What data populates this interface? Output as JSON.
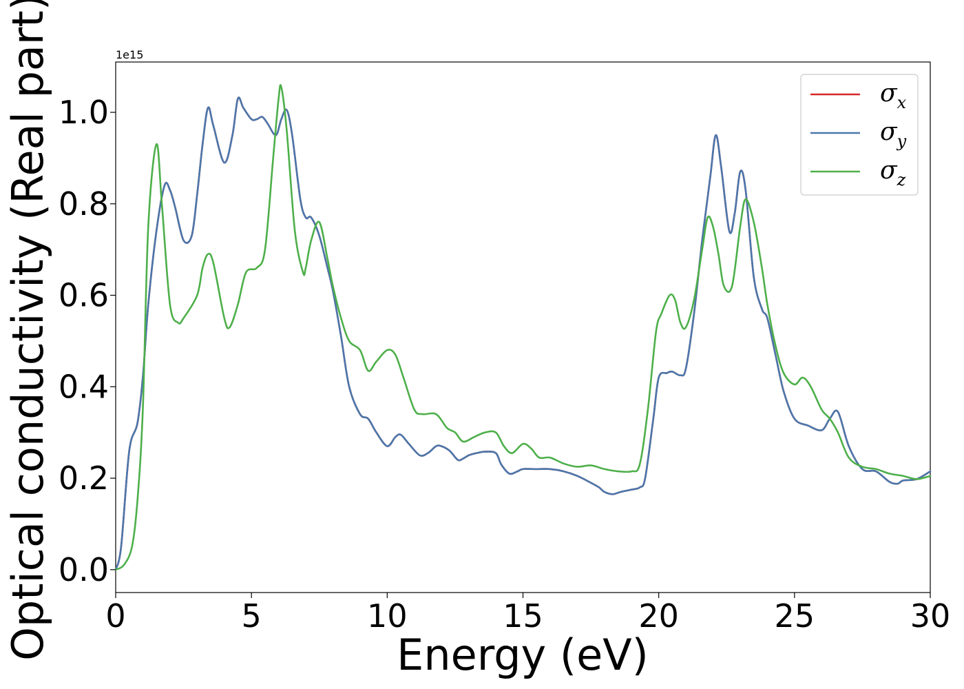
{
  "chart_data": {
    "type": "line",
    "xlabel": "Energy (eV)",
    "ylabel": "Optical conductivity (Real part)",
    "y_offset_label": "1e15",
    "xlim": [
      0,
      30
    ],
    "ylim": [
      -0.05,
      1.11
    ],
    "x_ticks": [
      0,
      5,
      10,
      15,
      20,
      25,
      30
    ],
    "x_tick_labels": [
      "0",
      "5",
      "10",
      "15",
      "20",
      "25",
      "30"
    ],
    "y_ticks": [
      0.0,
      0.2,
      0.4,
      0.6,
      0.8,
      1.0
    ],
    "y_tick_labels": [
      "0.0",
      "0.2",
      "0.4",
      "0.6",
      "0.8",
      "1.0"
    ],
    "grid": false,
    "legend_position": "top-right",
    "series": [
      {
        "name": "σx",
        "symbol": "σ",
        "sub": "x",
        "color": "#d62728",
        "x": [
          0,
          0.2,
          0.5,
          0.8,
          1.0,
          1.2,
          1.5,
          1.8,
          2.0,
          2.2,
          2.5,
          2.8,
          3.0,
          3.2,
          3.4,
          3.6,
          4.0,
          4.3,
          4.5,
          4.7,
          5.0,
          5.2,
          5.4,
          5.6,
          5.9,
          6.1,
          6.3,
          6.5,
          6.8,
          7.0,
          7.2,
          7.5,
          7.8,
          8.0,
          8.3,
          8.6,
          9.0,
          9.3,
          9.6,
          10.0,
          10.3,
          10.5,
          10.8,
          11.2,
          11.5,
          11.8,
          12.0,
          12.3,
          12.6,
          12.8,
          13.0,
          13.3,
          13.6,
          14.0,
          14.2,
          14.5,
          14.8,
          15.0,
          15.5,
          16.0,
          16.5,
          17.0,
          17.5,
          17.8,
          18.0,
          18.3,
          18.6,
          19.0,
          19.3,
          19.5,
          19.8,
          20.0,
          20.3,
          20.5,
          20.8,
          21.0,
          21.3,
          21.6,
          21.9,
          22.1,
          22.3,
          22.6,
          22.8,
          23.0,
          23.2,
          23.5,
          23.8,
          24.0,
          24.3,
          24.6,
          25.0,
          25.5,
          26.0,
          26.3,
          26.6,
          27.0,
          27.5,
          28.0,
          28.5,
          28.8,
          29.0,
          29.5,
          30.0
        ],
        "y": [
          0.0,
          0.05,
          0.26,
          0.32,
          0.42,
          0.58,
          0.74,
          0.84,
          0.83,
          0.79,
          0.72,
          0.73,
          0.82,
          0.93,
          1.01,
          0.97,
          0.89,
          0.95,
          1.03,
          1.01,
          0.985,
          0.985,
          0.99,
          0.975,
          0.95,
          0.985,
          1.005,
          0.95,
          0.81,
          0.77,
          0.77,
          0.73,
          0.66,
          0.61,
          0.51,
          0.4,
          0.34,
          0.33,
          0.3,
          0.27,
          0.29,
          0.295,
          0.275,
          0.25,
          0.255,
          0.27,
          0.27,
          0.26,
          0.24,
          0.243,
          0.25,
          0.255,
          0.258,
          0.255,
          0.23,
          0.21,
          0.215,
          0.22,
          0.22,
          0.22,
          0.215,
          0.205,
          0.19,
          0.18,
          0.17,
          0.165,
          0.17,
          0.175,
          0.18,
          0.2,
          0.33,
          0.42,
          0.43,
          0.433,
          0.425,
          0.44,
          0.56,
          0.72,
          0.86,
          0.95,
          0.88,
          0.74,
          0.78,
          0.87,
          0.83,
          0.64,
          0.57,
          0.55,
          0.47,
          0.39,
          0.33,
          0.315,
          0.305,
          0.33,
          0.345,
          0.27,
          0.22,
          0.215,
          0.192,
          0.188,
          0.195,
          0.198,
          0.215
        ]
      },
      {
        "name": "σy",
        "symbol": "σ",
        "sub": "y",
        "color": "#4a77ac",
        "x": [
          0,
          0.2,
          0.5,
          0.8,
          1.0,
          1.2,
          1.5,
          1.8,
          2.0,
          2.2,
          2.5,
          2.8,
          3.0,
          3.2,
          3.4,
          3.6,
          4.0,
          4.3,
          4.5,
          4.7,
          5.0,
          5.2,
          5.4,
          5.6,
          5.9,
          6.1,
          6.3,
          6.5,
          6.8,
          7.0,
          7.2,
          7.5,
          7.8,
          8.0,
          8.3,
          8.6,
          9.0,
          9.3,
          9.6,
          10.0,
          10.3,
          10.5,
          10.8,
          11.2,
          11.5,
          11.8,
          12.0,
          12.3,
          12.6,
          12.8,
          13.0,
          13.3,
          13.6,
          14.0,
          14.2,
          14.5,
          14.8,
          15.0,
          15.5,
          16.0,
          16.5,
          17.0,
          17.5,
          17.8,
          18.0,
          18.3,
          18.6,
          19.0,
          19.3,
          19.5,
          19.8,
          20.0,
          20.3,
          20.5,
          20.8,
          21.0,
          21.3,
          21.6,
          21.9,
          22.1,
          22.3,
          22.6,
          22.8,
          23.0,
          23.2,
          23.5,
          23.8,
          24.0,
          24.3,
          24.6,
          25.0,
          25.5,
          26.0,
          26.3,
          26.6,
          27.0,
          27.5,
          28.0,
          28.5,
          28.8,
          29.0,
          29.5,
          30.0
        ],
        "y": [
          0.0,
          0.05,
          0.26,
          0.32,
          0.42,
          0.58,
          0.74,
          0.84,
          0.83,
          0.79,
          0.72,
          0.73,
          0.82,
          0.93,
          1.01,
          0.97,
          0.89,
          0.95,
          1.03,
          1.01,
          0.985,
          0.985,
          0.99,
          0.975,
          0.95,
          0.985,
          1.005,
          0.95,
          0.81,
          0.77,
          0.77,
          0.73,
          0.66,
          0.61,
          0.51,
          0.4,
          0.34,
          0.33,
          0.3,
          0.27,
          0.29,
          0.295,
          0.275,
          0.25,
          0.255,
          0.27,
          0.27,
          0.26,
          0.24,
          0.243,
          0.25,
          0.255,
          0.258,
          0.255,
          0.23,
          0.21,
          0.215,
          0.22,
          0.22,
          0.22,
          0.215,
          0.205,
          0.19,
          0.18,
          0.17,
          0.165,
          0.17,
          0.175,
          0.18,
          0.2,
          0.33,
          0.42,
          0.43,
          0.433,
          0.425,
          0.44,
          0.56,
          0.72,
          0.86,
          0.95,
          0.88,
          0.74,
          0.78,
          0.87,
          0.83,
          0.64,
          0.57,
          0.55,
          0.47,
          0.39,
          0.33,
          0.315,
          0.305,
          0.33,
          0.345,
          0.27,
          0.22,
          0.215,
          0.192,
          0.188,
          0.195,
          0.198,
          0.215
        ]
      },
      {
        "name": "σz",
        "symbol": "σ",
        "sub": "z",
        "color": "#4daf4a",
        "x": [
          0,
          0.3,
          0.6,
          0.8,
          1.0,
          1.2,
          1.5,
          1.7,
          2.0,
          2.3,
          2.5,
          3.0,
          3.2,
          3.4,
          3.6,
          4.0,
          4.2,
          4.5,
          4.8,
          5.2,
          5.5,
          5.8,
          6.0,
          6.1,
          6.3,
          6.6,
          6.9,
          7.0,
          7.2,
          7.5,
          7.8,
          8.0,
          8.3,
          8.6,
          9.0,
          9.3,
          9.6,
          10.0,
          10.3,
          10.6,
          11.0,
          11.3,
          11.8,
          12.2,
          12.5,
          12.8,
          13.2,
          13.6,
          14.0,
          14.3,
          14.6,
          15.0,
          15.3,
          15.6,
          16.0,
          16.5,
          17.0,
          17.5,
          18.0,
          18.5,
          19.0,
          19.3,
          19.6,
          19.9,
          20.1,
          20.4,
          20.6,
          20.8,
          21.0,
          21.3,
          21.6,
          21.8,
          22.0,
          22.2,
          22.4,
          22.7,
          23.0,
          23.2,
          23.5,
          23.8,
          24.0,
          24.3,
          24.6,
          25.0,
          25.3,
          25.6,
          26.0,
          26.3,
          26.6,
          27.0,
          27.5,
          28.0,
          28.5,
          29.0,
          29.5,
          30.0
        ],
        "y": [
          0.0,
          0.01,
          0.05,
          0.15,
          0.35,
          0.75,
          0.93,
          0.8,
          0.58,
          0.54,
          0.55,
          0.6,
          0.66,
          0.69,
          0.67,
          0.55,
          0.53,
          0.58,
          0.65,
          0.66,
          0.7,
          0.9,
          1.03,
          1.055,
          0.96,
          0.74,
          0.65,
          0.66,
          0.72,
          0.76,
          0.68,
          0.62,
          0.55,
          0.5,
          0.48,
          0.435,
          0.455,
          0.48,
          0.47,
          0.42,
          0.35,
          0.34,
          0.34,
          0.31,
          0.3,
          0.28,
          0.29,
          0.3,
          0.3,
          0.27,
          0.255,
          0.275,
          0.265,
          0.245,
          0.245,
          0.232,
          0.225,
          0.228,
          0.22,
          0.215,
          0.215,
          0.23,
          0.35,
          0.52,
          0.56,
          0.6,
          0.59,
          0.54,
          0.53,
          0.59,
          0.7,
          0.77,
          0.75,
          0.69,
          0.62,
          0.62,
          0.75,
          0.81,
          0.76,
          0.66,
          0.58,
          0.49,
          0.43,
          0.405,
          0.42,
          0.4,
          0.35,
          0.33,
          0.3,
          0.245,
          0.225,
          0.22,
          0.21,
          0.205,
          0.198,
          0.205
        ]
      }
    ]
  }
}
